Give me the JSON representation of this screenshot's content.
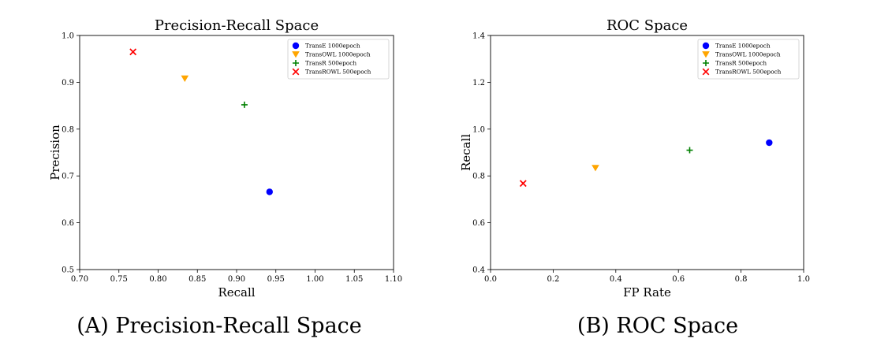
{
  "chart_data": [
    {
      "type": "scatter",
      "title": "Precision-Recall Space",
      "xlabel": "Recall",
      "ylabel": "Precision",
      "xlim": [
        0.7,
        1.1
      ],
      "ylim": [
        0.5,
        1.0
      ],
      "xticks": [
        "0.70",
        "0.75",
        "0.80",
        "0.85",
        "0.90",
        "0.95",
        "1.00",
        "1.05",
        "1.10"
      ],
      "xtick_values": [
        0.7,
        0.75,
        0.8,
        0.85,
        0.9,
        0.95,
        1.0,
        1.05,
        1.1
      ],
      "yticks": [
        "0.5",
        "0.6",
        "0.7",
        "0.8",
        "0.9",
        "1.0"
      ],
      "ytick_values": [
        0.5,
        0.6,
        0.7,
        0.8,
        0.9,
        1.0
      ],
      "legend_position": "top-right",
      "grid": false,
      "series": [
        {
          "name": "TransE 1000epoch",
          "marker": "circle",
          "color": "#0000ff",
          "x": [
            0.942
          ],
          "y": [
            0.666
          ]
        },
        {
          "name": "TransOWL 1000epoch",
          "marker": "triangle-down",
          "color": "#ffa500",
          "x": [
            0.834
          ],
          "y": [
            0.908
          ]
        },
        {
          "name": "TransR 500epoch",
          "marker": "plus",
          "color": "#008000",
          "x": [
            0.91
          ],
          "y": [
            0.852
          ]
        },
        {
          "name": "TransROWL 500epoch",
          "marker": "x",
          "color": "#ff0000",
          "x": [
            0.768
          ],
          "y": [
            0.965
          ]
        }
      ]
    },
    {
      "type": "scatter",
      "title": "ROC Space",
      "xlabel": "FP Rate",
      "ylabel": "Recall",
      "xlim": [
        0.0,
        1.0
      ],
      "ylim": [
        0.4,
        1.4
      ],
      "xticks": [
        "0.0",
        "0.2",
        "0.4",
        "0.6",
        "0.8",
        "1.0"
      ],
      "xtick_values": [
        0.0,
        0.2,
        0.4,
        0.6,
        0.8,
        1.0
      ],
      "yticks": [
        "0.4",
        "0.6",
        "0.8",
        "1.0",
        "1.2",
        "1.4"
      ],
      "ytick_values": [
        0.4,
        0.6,
        0.8,
        1.0,
        1.2,
        1.4
      ],
      "legend_position": "top-right",
      "grid": false,
      "series": [
        {
          "name": "TransE 1000epoch",
          "marker": "circle",
          "color": "#0000ff",
          "x": [
            0.89
          ],
          "y": [
            0.942
          ]
        },
        {
          "name": "TransOWL 1000epoch",
          "marker": "triangle-down",
          "color": "#ffa500",
          "x": [
            0.335
          ],
          "y": [
            0.834
          ]
        },
        {
          "name": "TransR 500epoch",
          "marker": "plus",
          "color": "#008000",
          "x": [
            0.636
          ],
          "y": [
            0.91
          ]
        },
        {
          "name": "TransROWL 500epoch",
          "marker": "x",
          "color": "#ff0000",
          "x": [
            0.104
          ],
          "y": [
            0.768
          ]
        }
      ]
    }
  ],
  "captions": {
    "a": "(A) Precision-Recall Space",
    "b": "(B) ROC Space"
  }
}
